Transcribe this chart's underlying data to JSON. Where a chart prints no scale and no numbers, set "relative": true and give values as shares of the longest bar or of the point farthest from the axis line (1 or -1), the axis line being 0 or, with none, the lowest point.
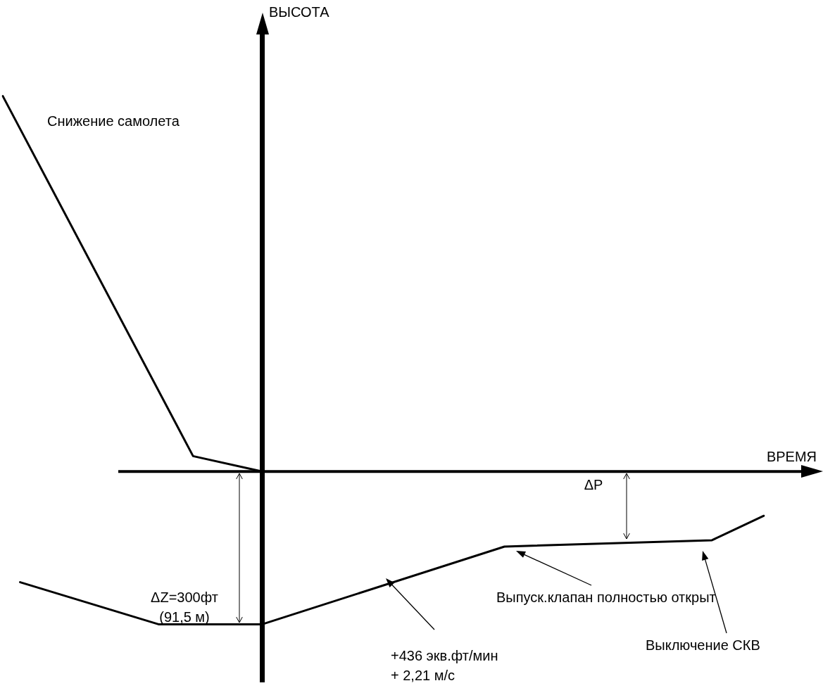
{
  "chart_data": {
    "type": "line",
    "relative": true,
    "legend": false,
    "marker": "none",
    "line_style": "solid",
    "categories": [
      null,
      null,
      null,
      null,
      null,
      null,
      null,
      null,
      null,
      null,
      null,
      null,
      null,
      null,
      null,
      null,
      null,
      null,
      null,
      null,
      null,
      null,
      null,
      null,
      null,
      null,
      null,
      null,
      null,
      null,
      null,
      null,
      null,
      null,
      null,
      null,
      null,
      null,
      null,
      null,
      null,
      null,
      null,
      null,
      null
    ],
    "series": [
      {
        "name": "Снижение самолета",
        "color": "#000000",
        "values": [
          1,
          null,
          null,
          null,
          null,
          null,
          null,
          null,
          null,
          null,
          null,
          0.041,
          null,
          null,
          null,
          0,
          null,
          null,
          null,
          null,
          null,
          null,
          null,
          null,
          null,
          null,
          null,
          null,
          null,
          null,
          null,
          null,
          null,
          null,
          null,
          null,
          null,
          null,
          null,
          null,
          null,
          null,
          null,
          null,
          null
        ]
      },
      {
        "color": "#000000",
        "values": [
          null,
          -0.295,
          null,
          null,
          null,
          null,
          null,
          null,
          null,
          -0.407,
          null,
          null,
          null,
          null,
          null,
          -0.407,
          null,
          null,
          null,
          null,
          null,
          null,
          null,
          null,
          null,
          null,
          null,
          null,
          null,
          -0.2,
          null,
          null,
          null,
          null,
          null,
          null,
          null,
          null,
          null,
          null,
          null,
          -0.183,
          null,
          null,
          -0.118
        ]
      }
    ],
    "annotations": [
      "ВЫСОТА",
      "ВРЕМЯ",
      "ΔZ=300фт\n(91,5 м)",
      "ΔP",
      "Выпуск.клапан полностью открыт",
      "Выключение СКВ",
      "+436 экв.фт/мин\n+ 2,21 м/с"
    ]
  }
}
